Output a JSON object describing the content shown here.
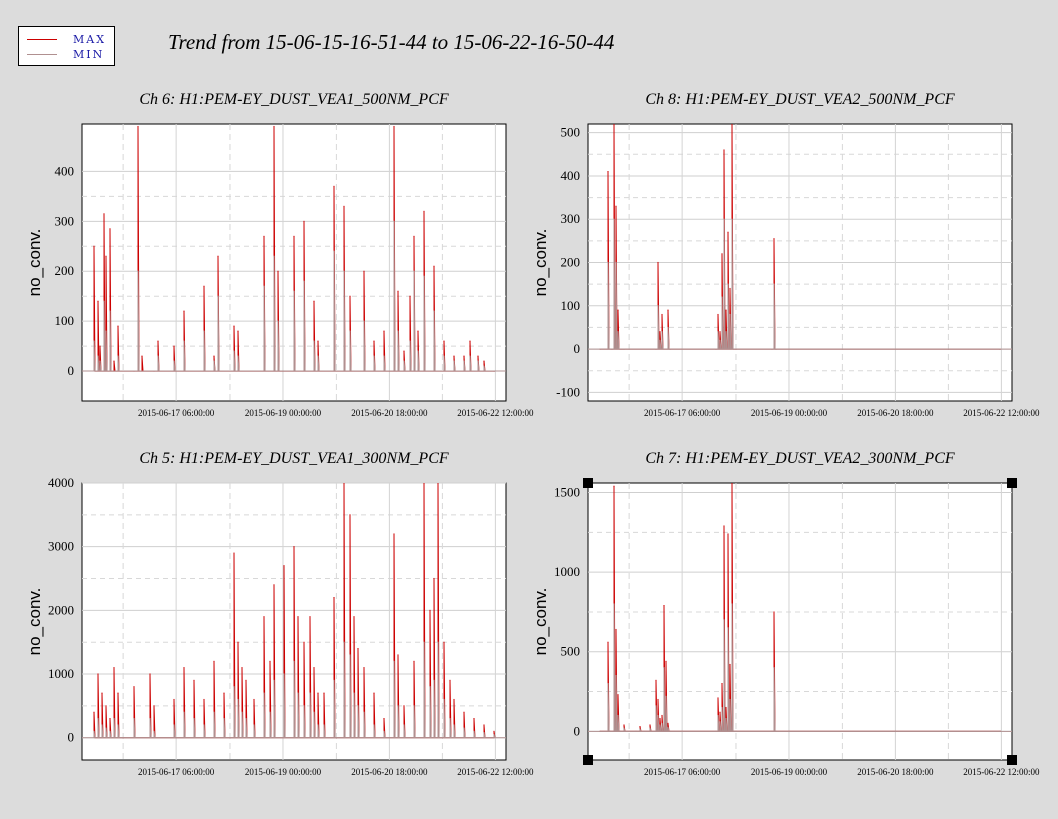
{
  "title": "Trend from 15-06-15-16-51-44 to 15-06-22-16-50-44",
  "legend": [
    {
      "label": "MAX",
      "color": "#cc0000"
    },
    {
      "label": "MIN",
      "color": "#b09090"
    }
  ],
  "chart_data": [
    {
      "type": "line",
      "title": "Ch 6: H1:PEM-EY_DUST_VEA1_500NM_PCF",
      "ylabel": "no_conv.",
      "ylim": [
        -60,
        495
      ],
      "yticks": [
        0,
        100,
        200,
        300,
        400
      ],
      "xticks": [
        "2015-06-17 06:00:00",
        "2015-06-19 00:00:00",
        "2015-06-20 18:00:00",
        "2015-06-22 12:00:00"
      ],
      "x": [
        0,
        2,
        3,
        5,
        6,
        8,
        10,
        12,
        20,
        22,
        24,
        30,
        32,
        40,
        45,
        55,
        60,
        62,
        70,
        72,
        85,
        90,
        92,
        100,
        105,
        110,
        112,
        120,
        125,
        128,
        135,
        140,
        145,
        150,
        152,
        155,
        158,
        160,
        162,
        165,
        170,
        175,
        180,
        185,
        188,
        192,
        195,
        200
      ],
      "series": [
        {
          "name": "MAX",
          "values": [
            250,
            140,
            50,
            315,
            230,
            285,
            20,
            90,
            0,
            490,
            30,
            0,
            60,
            50,
            120,
            170,
            30,
            230,
            90,
            80,
            270,
            490,
            200,
            270,
            300,
            140,
            60,
            370,
            330,
            150,
            200,
            60,
            80,
            490,
            160,
            40,
            150,
            270,
            80,
            320,
            210,
            60,
            30,
            30,
            60,
            30,
            20,
            0
          ]
        },
        {
          "name": "MIN",
          "values": [
            60,
            30,
            20,
            140,
            80,
            120,
            0,
            30,
            0,
            200,
            0,
            0,
            30,
            20,
            60,
            80,
            20,
            150,
            40,
            30,
            170,
            230,
            100,
            160,
            180,
            60,
            30,
            240,
            200,
            80,
            100,
            30,
            30,
            300,
            80,
            20,
            60,
            200,
            40,
            190,
            120,
            30,
            20,
            20,
            30,
            20,
            10,
            0
          ]
        }
      ]
    },
    {
      "type": "line",
      "title": "Ch 8: H1:PEM-EY_DUST_VEA2_500NM_PCF",
      "ylabel": "no_conv.",
      "ylim": [
        -120,
        520
      ],
      "yticks": [
        -100,
        0,
        100,
        200,
        300,
        400,
        500
      ],
      "xticks": [
        "2015-06-17 06:00:00",
        "2015-06-19 00:00:00",
        "2015-06-20 18:00:00",
        "2015-06-22 12:00:00"
      ],
      "x": [
        0,
        4,
        6,
        7,
        8,
        9,
        10,
        11,
        12,
        28,
        29,
        30,
        31,
        34,
        35,
        58,
        59,
        60,
        61,
        62,
        63,
        64,
        65,
        66,
        67,
        68,
        86,
        87,
        88,
        200
      ],
      "series": [
        {
          "name": "MAX",
          "values": [
            0,
            410,
            0,
            520,
            330,
            90,
            0,
            0,
            0,
            0,
            200,
            40,
            80,
            90,
            0,
            0,
            80,
            40,
            220,
            460,
            90,
            270,
            140,
            520,
            0,
            0,
            0,
            255,
            0,
            0
          ]
        },
        {
          "name": "MIN",
          "values": [
            0,
            200,
            0,
            300,
            200,
            40,
            0,
            0,
            0,
            0,
            100,
            20,
            40,
            50,
            0,
            0,
            40,
            20,
            120,
            300,
            40,
            150,
            80,
            300,
            0,
            0,
            0,
            150,
            0,
            0
          ]
        }
      ]
    },
    {
      "type": "line",
      "title": "Ch 5: H1:PEM-EY_DUST_VEA1_300NM_PCF",
      "ylabel": "no_conv.",
      "ylim": [
        -350,
        4000
      ],
      "yticks": [
        0,
        1000,
        2000,
        3000,
        4000
      ],
      "xticks": [
        "2015-06-17 06:00:00",
        "2015-06-19 00:00:00",
        "2015-06-20 18:00:00",
        "2015-06-22 12:00:00"
      ],
      "x": [
        0,
        2,
        4,
        6,
        8,
        10,
        12,
        20,
        28,
        30,
        40,
        45,
        50,
        55,
        60,
        65,
        70,
        72,
        74,
        76,
        80,
        85,
        88,
        90,
        95,
        100,
        102,
        105,
        108,
        110,
        112,
        115,
        120,
        125,
        128,
        130,
        132,
        135,
        140,
        145,
        150,
        152,
        155,
        160,
        165,
        168,
        170,
        172,
        175,
        178,
        180,
        185,
        190,
        195,
        200
      ],
      "series": [
        {
          "name": "MAX",
          "values": [
            400,
            1000,
            700,
            500,
            300,
            1100,
            700,
            800,
            1000,
            500,
            600,
            1100,
            900,
            600,
            1200,
            700,
            2900,
            1500,
            1100,
            900,
            600,
            1900,
            1200,
            2400,
            2700,
            3000,
            1900,
            1500,
            1900,
            1100,
            700,
            700,
            2200,
            4000,
            3500,
            1900,
            1400,
            1100,
            700,
            300,
            3200,
            1300,
            500,
            1200,
            4000,
            2000,
            2500,
            4000,
            1500,
            900,
            600,
            400,
            300,
            200,
            100
          ]
        },
        {
          "name": "MIN",
          "values": [
            100,
            300,
            200,
            150,
            100,
            300,
            200,
            300,
            300,
            100,
            200,
            400,
            300,
            200,
            400,
            300,
            800,
            600,
            400,
            300,
            200,
            700,
            400,
            900,
            1000,
            1200,
            700,
            500,
            700,
            400,
            200,
            200,
            900,
            1500,
            1300,
            700,
            500,
            400,
            200,
            100,
            1200,
            500,
            200,
            500,
            1500,
            800,
            900,
            1500,
            600,
            300,
            200,
            150,
            100,
            80,
            50
          ]
        }
      ]
    },
    {
      "type": "line",
      "title": "Ch 7: H1:PEM-EY_DUST_VEA2_300NM_PCF",
      "ylabel": "no_conv.",
      "ylim": [
        -180,
        1560
      ],
      "yticks": [
        0,
        500,
        1000,
        1500
      ],
      "xticks": [
        "2015-06-17 06:00:00",
        "2015-06-19 00:00:00",
        "2015-06-20 18:00:00",
        "2015-06-22 12:00:00"
      ],
      "x": [
        0,
        4,
        5,
        7,
        8,
        9,
        10,
        12,
        18,
        20,
        25,
        28,
        29,
        30,
        31,
        32,
        33,
        34,
        35,
        58,
        59,
        60,
        61,
        62,
        63,
        64,
        65,
        66,
        67,
        68,
        86,
        87,
        88,
        200
      ],
      "series": [
        {
          "name": "MAX",
          "values": [
            0,
            560,
            0,
            1540,
            640,
            230,
            0,
            40,
            0,
            30,
            40,
            320,
            200,
            80,
            100,
            790,
            440,
            50,
            0,
            0,
            210,
            120,
            300,
            1290,
            150,
            1240,
            420,
            1560,
            0,
            0,
            0,
            750,
            0,
            0
          ]
        },
        {
          "name": "MIN",
          "values": [
            0,
            300,
            0,
            800,
            350,
            100,
            0,
            20,
            0,
            15,
            20,
            160,
            100,
            40,
            50,
            400,
            220,
            25,
            0,
            0,
            100,
            60,
            150,
            700,
            80,
            650,
            200,
            800,
            0,
            0,
            0,
            400,
            0,
            0
          ]
        }
      ]
    }
  ]
}
